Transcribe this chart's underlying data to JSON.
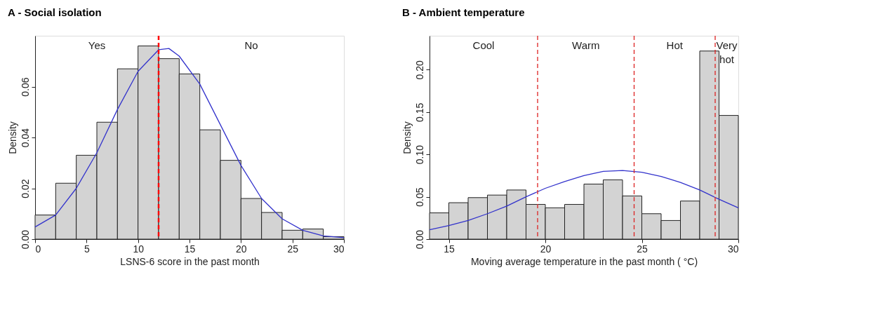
{
  "chart_data": [
    {
      "type": "histogram",
      "title": "A - Social isolation",
      "xlabel": "LSNS-6 score in the past month",
      "ylabel": "Density",
      "bins": [
        0,
        2,
        4,
        6,
        8,
        10,
        12,
        14,
        16,
        18,
        20,
        22,
        24,
        26,
        28,
        30
      ],
      "values": [
        0.0095,
        0.022,
        0.033,
        0.046,
        0.067,
        0.076,
        0.071,
        0.065,
        0.043,
        0.031,
        0.016,
        0.0105,
        0.0035,
        0.004,
        0.001
      ],
      "color": "#d3d3d3",
      "series": [
        {
          "type": "line",
          "color": "#3333cc",
          "x": [
            0,
            2,
            4,
            6,
            8,
            10,
            12,
            13,
            14,
            16,
            18,
            20,
            22,
            24,
            26,
            28,
            30
          ],
          "values": [
            0.0048,
            0.0095,
            0.02,
            0.034,
            0.051,
            0.066,
            0.0745,
            0.075,
            0.072,
            0.061,
            0.045,
            0.029,
            0.016,
            0.008,
            0.0035,
            0.0013,
            0.0006
          ]
        }
      ],
      "xlim": [
        0,
        30
      ],
      "xticks": [
        0,
        5,
        10,
        15,
        20,
        25,
        30
      ],
      "ylim": [
        0,
        0.08
      ],
      "yticks": [
        {
          "value": 0,
          "label": "0.00"
        },
        {
          "value": 0.02,
          "label": "0.02"
        },
        {
          "value": 0.04,
          "label": "0.04"
        },
        {
          "value": 0.06,
          "label": "0.06"
        }
      ],
      "ref_lines": [
        {
          "axis": "x",
          "value": 12,
          "color": "#ff0000",
          "line_style": "dashed"
        }
      ],
      "annotations": [
        "Yes",
        "No"
      ],
      "grid": false
    },
    {
      "type": "histogram",
      "title": "B - Ambient temperature",
      "xlabel": "Moving average temperature in the past month ( °C)",
      "ylabel": "Density",
      "bins": [
        14,
        15,
        16,
        17,
        18,
        19,
        20,
        21,
        22,
        23,
        24,
        25,
        26,
        27,
        28,
        29,
        30
      ],
      "values": [
        0.031,
        0.043,
        0.049,
        0.052,
        0.058,
        0.041,
        0.037,
        0.041,
        0.065,
        0.07,
        0.051,
        0.03,
        0.022,
        0.045,
        0.222,
        0.146
      ],
      "color": "#d3d3d3",
      "series": [
        {
          "type": "line",
          "color": "#3333cc",
          "x": [
            14,
            15,
            16,
            17,
            18,
            19,
            20,
            21,
            22,
            23,
            24,
            25,
            26,
            27,
            28,
            29,
            30
          ],
          "values": [
            0.011,
            0.016,
            0.022,
            0.03,
            0.039,
            0.05,
            0.06,
            0.068,
            0.075,
            0.08,
            0.081,
            0.079,
            0.074,
            0.067,
            0.058,
            0.047,
            0.037
          ]
        }
      ],
      "xlim": [
        14,
        30
      ],
      "xticks": [
        15,
        20,
        25,
        30
      ],
      "ylim": [
        0,
        0.24
      ],
      "yticks": [
        {
          "value": 0,
          "label": "0.00"
        },
        {
          "value": 0.05,
          "label": "0.05"
        },
        {
          "value": 0.1,
          "label": "0.10"
        },
        {
          "value": 0.15,
          "label": "0.15"
        },
        {
          "value": 0.2,
          "label": "0.20"
        }
      ],
      "ref_lines": [
        {
          "axis": "x",
          "value": 19.6,
          "color": "#dd2222",
          "line_style": "dashed"
        },
        {
          "axis": "x",
          "value": 24.6,
          "color": "#dd2222",
          "line_style": "dashed"
        },
        {
          "axis": "x",
          "value": 28.8,
          "color": "#dd2222",
          "line_style": "dashed"
        }
      ],
      "annotations": [
        "Cool",
        "Warm",
        "Hot",
        "Very\nhot"
      ],
      "grid": false
    }
  ]
}
